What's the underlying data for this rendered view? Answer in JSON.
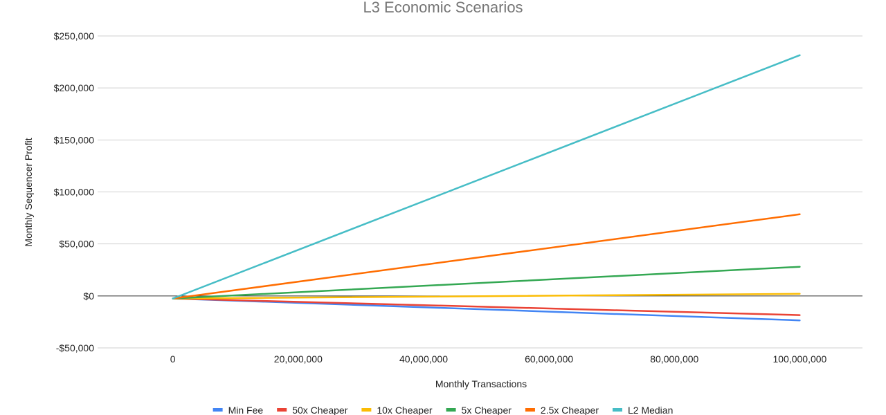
{
  "chart_data": {
    "type": "line",
    "title": "L3 Economic Scenarios",
    "xlabel": "Monthly Transactions",
    "ylabel": "Monthly Sequencer Profit",
    "xlim": [
      -12000000,
      110000000
    ],
    "ylim": [
      -50000,
      250000
    ],
    "x_ticks": [
      0,
      20000000,
      40000000,
      60000000,
      80000000,
      100000000
    ],
    "x_tick_labels": [
      "0",
      "20,000,000",
      "40,000,000",
      "60,000,000",
      "80,000,000",
      "100,000,000"
    ],
    "y_ticks": [
      -50000,
      0,
      50000,
      100000,
      150000,
      200000,
      250000
    ],
    "y_tick_labels": [
      "-$50,000",
      "$0",
      "$50,000",
      "$100,000",
      "$150,000",
      "$200,000",
      "$250,000"
    ],
    "grid": true,
    "legend_position": "bottom",
    "series": [
      {
        "name": "Min Fee",
        "color": "#4285F4",
        "x": [
          0,
          100000000
        ],
        "y": [
          -2500,
          -23500
        ]
      },
      {
        "name": "50x Cheaper",
        "color": "#EA4335",
        "x": [
          0,
          100000000
        ],
        "y": [
          -2500,
          -18500
        ]
      },
      {
        "name": "10x Cheaper",
        "color": "#FBBC04",
        "x": [
          0,
          100000000
        ],
        "y": [
          -2500,
          2000
        ]
      },
      {
        "name": "5x Cheaper",
        "color": "#34A853",
        "x": [
          0,
          100000000
        ],
        "y": [
          -2500,
          28000
        ]
      },
      {
        "name": "2.5x Cheaper",
        "color": "#FF6D01",
        "x": [
          0,
          100000000
        ],
        "y": [
          -2500,
          78500
        ]
      },
      {
        "name": "L2 Median",
        "color": "#46BDC6",
        "x": [
          0,
          100000000
        ],
        "y": [
          -2500,
          231500
        ]
      }
    ]
  }
}
